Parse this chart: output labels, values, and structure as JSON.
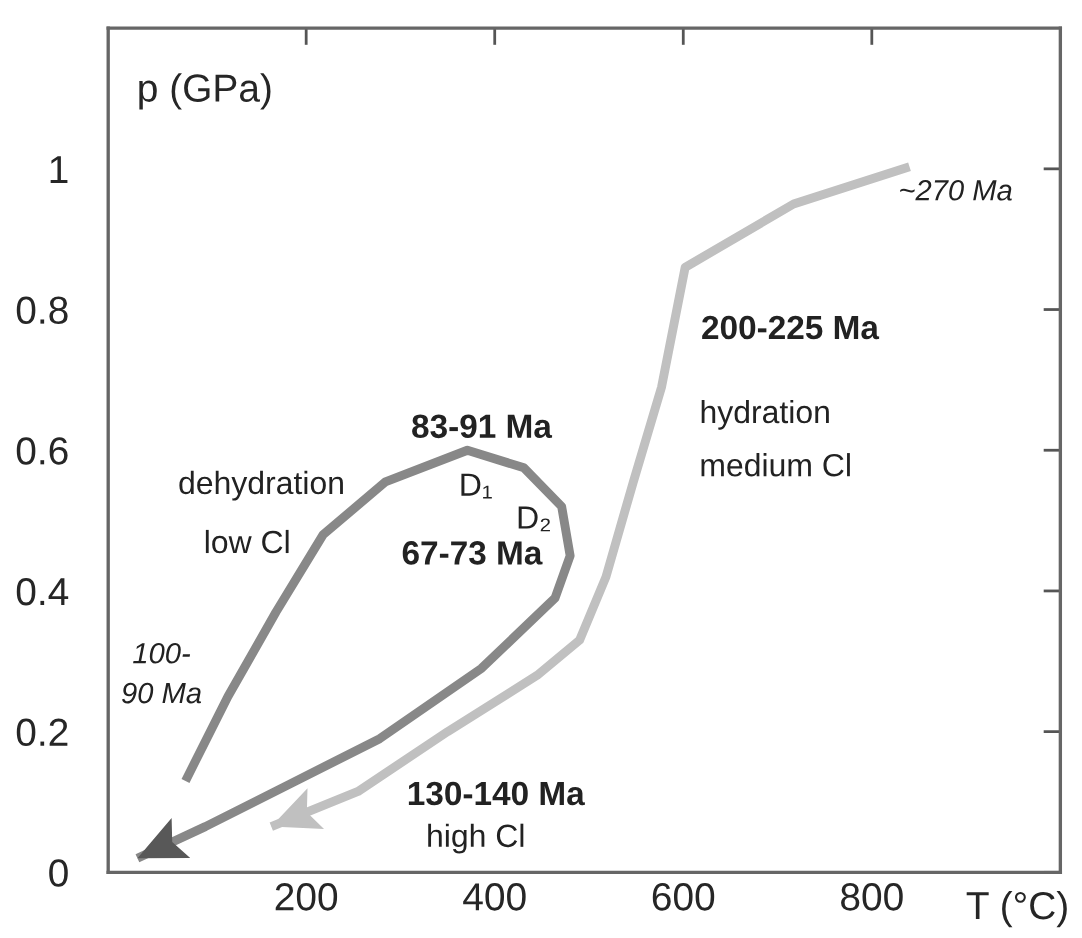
{
  "chart_data": {
    "type": "line",
    "xlabel": "T (°C)",
    "ylabel": "p (GPa)",
    "xlim": [
      -10,
      1000
    ],
    "ylim": [
      0,
      1.2
    ],
    "xticks": [
      200,
      400,
      600,
      800
    ],
    "yticks": [
      0,
      0.2,
      0.4,
      0.6,
      0.8,
      1
    ],
    "series": [
      {
        "color": "#888888",
        "x": [
          72,
          117,
          168,
          218,
          284,
          371,
          431,
          471,
          480,
          464,
          386,
          278,
          182,
          93,
          21
        ],
        "values": [
          0.13,
          0.25,
          0.37,
          0.48,
          0.555,
          0.6,
          0.575,
          0.52,
          0.45,
          0.39,
          0.29,
          0.19,
          0.125,
          0.065,
          0.02
        ]
      },
      {
        "color": "#c0c0c0",
        "x": [
          840,
          717,
          602,
          577,
          547,
          518,
          490,
          445,
          350,
          255,
          163
        ],
        "values": [
          1.003,
          0.95,
          0.86,
          0.69,
          0.555,
          0.42,
          0.33,
          0.28,
          0.2,
          0.115,
          0.065
        ]
      }
    ],
    "annotations": [
      "~270 Ma",
      "200-225 Ma",
      "hydration",
      "medium Cl",
      "83-91 Ma",
      "dehydration",
      "low Cl",
      "D₁",
      "D₂",
      "67-73 Ma",
      "100-\n90 Ma",
      "130-140 Ma",
      "high Cl"
    ],
    "grid": false,
    "legend": false,
    "marker": "none",
    "line_style": "solid"
  }
}
